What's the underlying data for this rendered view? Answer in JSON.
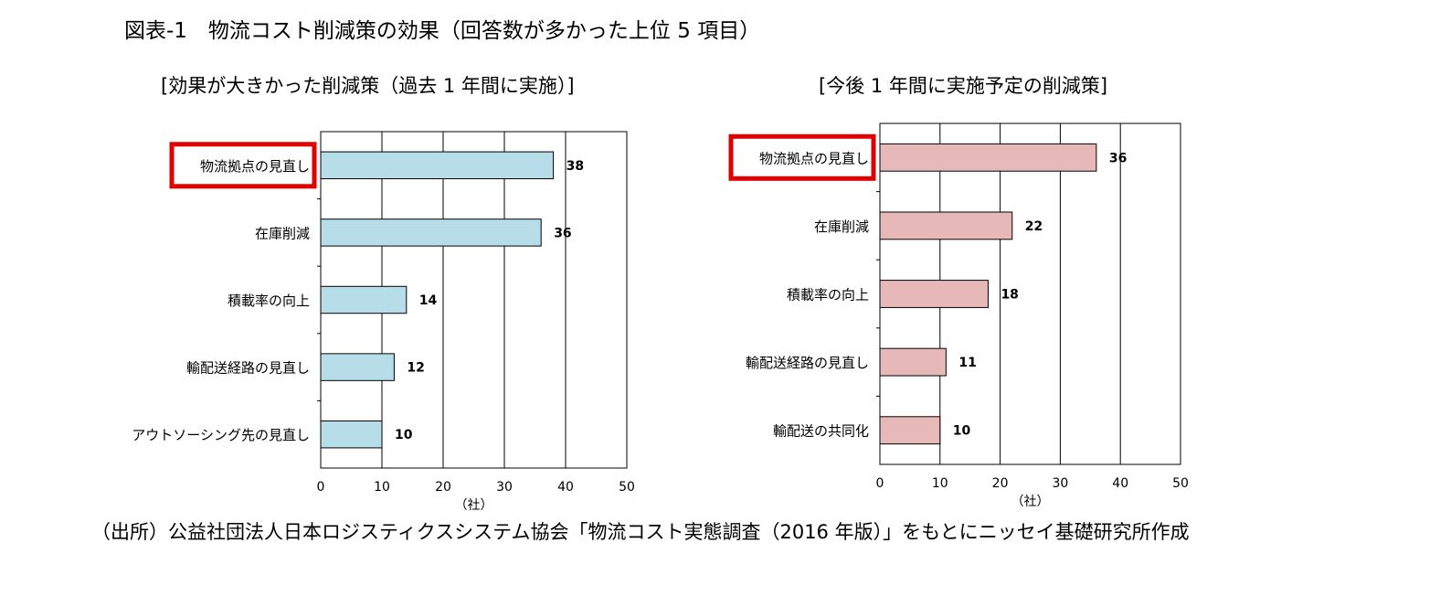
{
  "figure_title": "図表-1　物流コスト削減策の効果（回答数が多かった上位 5 項目）",
  "source": "（出所）公益社団法人日本ロジスティクスシステム協会「物流コスト実態調査（2016 年版）」をもとにニッセイ基礎研究所作成",
  "colors": {
    "left_bar": "#b7dde8",
    "right_bar": "#e6b9b8",
    "highlight": "#e00000"
  },
  "chart_data": [
    {
      "type": "bar",
      "orientation": "horizontal",
      "title": "[効果が大きかった削減策（過去 1 年間に実施）]",
      "categories": [
        "物流拠点の見直し",
        "在庫削減",
        "積載率の向上",
        "輸配送経路の見直し",
        "アウトソーシング先の見直し"
      ],
      "values": [
        38,
        36,
        14,
        12,
        10
      ],
      "value_labels": [
        "38",
        "36",
        "14",
        "12",
        "10"
      ],
      "xlabel": "（社）",
      "xlim": [
        0,
        50
      ],
      "xticks": [
        "0",
        "10",
        "20",
        "30",
        "40",
        "50"
      ],
      "grid": "vertical",
      "highlighted_category": "物流拠点の見直し"
    },
    {
      "type": "bar",
      "orientation": "horizontal",
      "title": "[今後 1 年間に実施予定の削減策]",
      "categories": [
        "物流拠点の見直し",
        "在庫削減",
        "積載率の向上",
        "輸配送経路の見直し",
        "輸配送の共同化"
      ],
      "values": [
        36,
        22,
        18,
        11,
        10
      ],
      "value_labels": [
        "36",
        "22",
        "18",
        "11",
        "10"
      ],
      "xlabel": "（社）",
      "xlim": [
        0,
        50
      ],
      "xticks": [
        "0",
        "10",
        "20",
        "30",
        "40",
        "50"
      ],
      "grid": "vertical",
      "highlighted_category": "物流拠点の見直し"
    }
  ]
}
